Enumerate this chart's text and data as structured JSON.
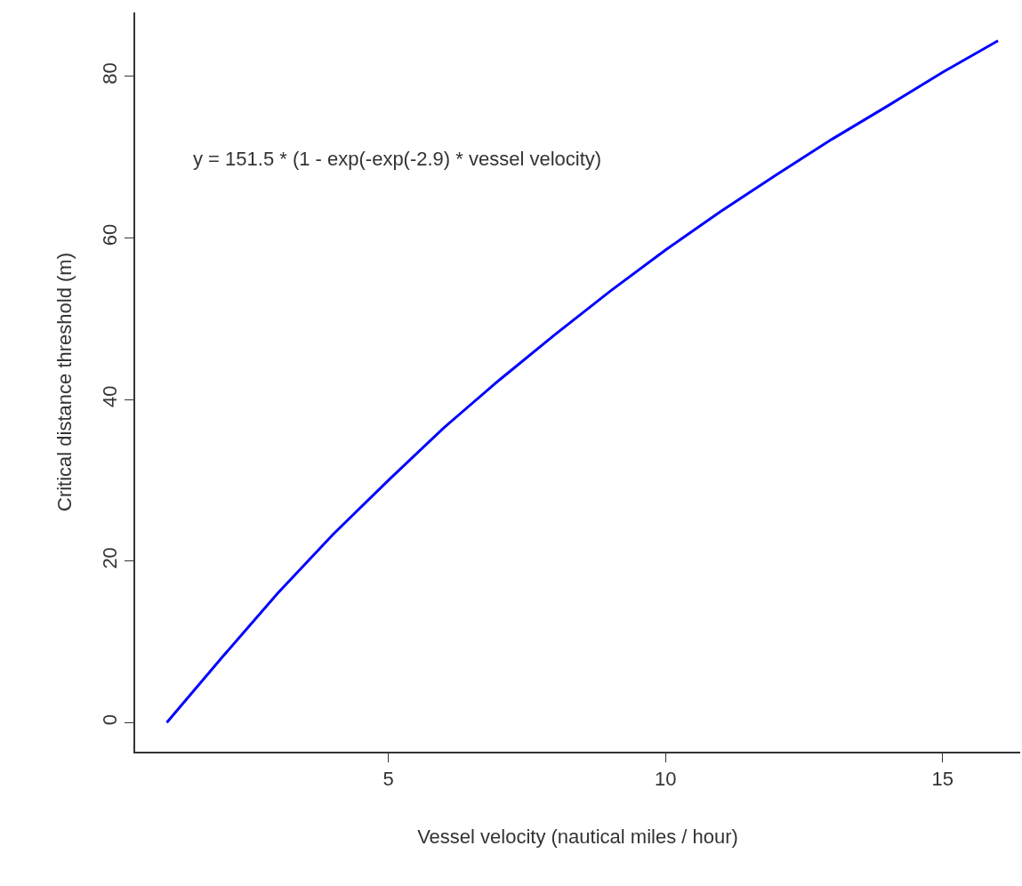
{
  "chart_data": {
    "type": "line",
    "xlabel": "Vessel velocity (nautical miles / hour)",
    "ylabel": "Critical distance threshold (m)",
    "annotations": [
      "y = 151.5 * (1 - exp(-exp(-2.9) * vessel velocity)"
    ],
    "x": [
      1,
      2,
      3,
      4,
      5,
      6,
      7,
      8,
      9,
      10,
      11,
      12,
      13,
      14,
      15,
      16
    ],
    "series": [
      {
        "color": "#0000ff",
        "values": [
          0,
          8.1,
          16,
          23.3,
          30,
          36.5,
          42.4,
          48,
          53.4,
          58.5,
          63.3,
          67.8,
          72.2,
          76.3,
          80.5,
          84.4
        ]
      }
    ],
    "xlim": [
      0.43,
      16.4
    ],
    "ylim": [
      -3.6,
      87.9
    ],
    "xticks": [
      5,
      10,
      15
    ],
    "yticks": [
      0,
      20,
      40,
      60,
      80
    ],
    "marker": "none",
    "line_style": "solid"
  }
}
